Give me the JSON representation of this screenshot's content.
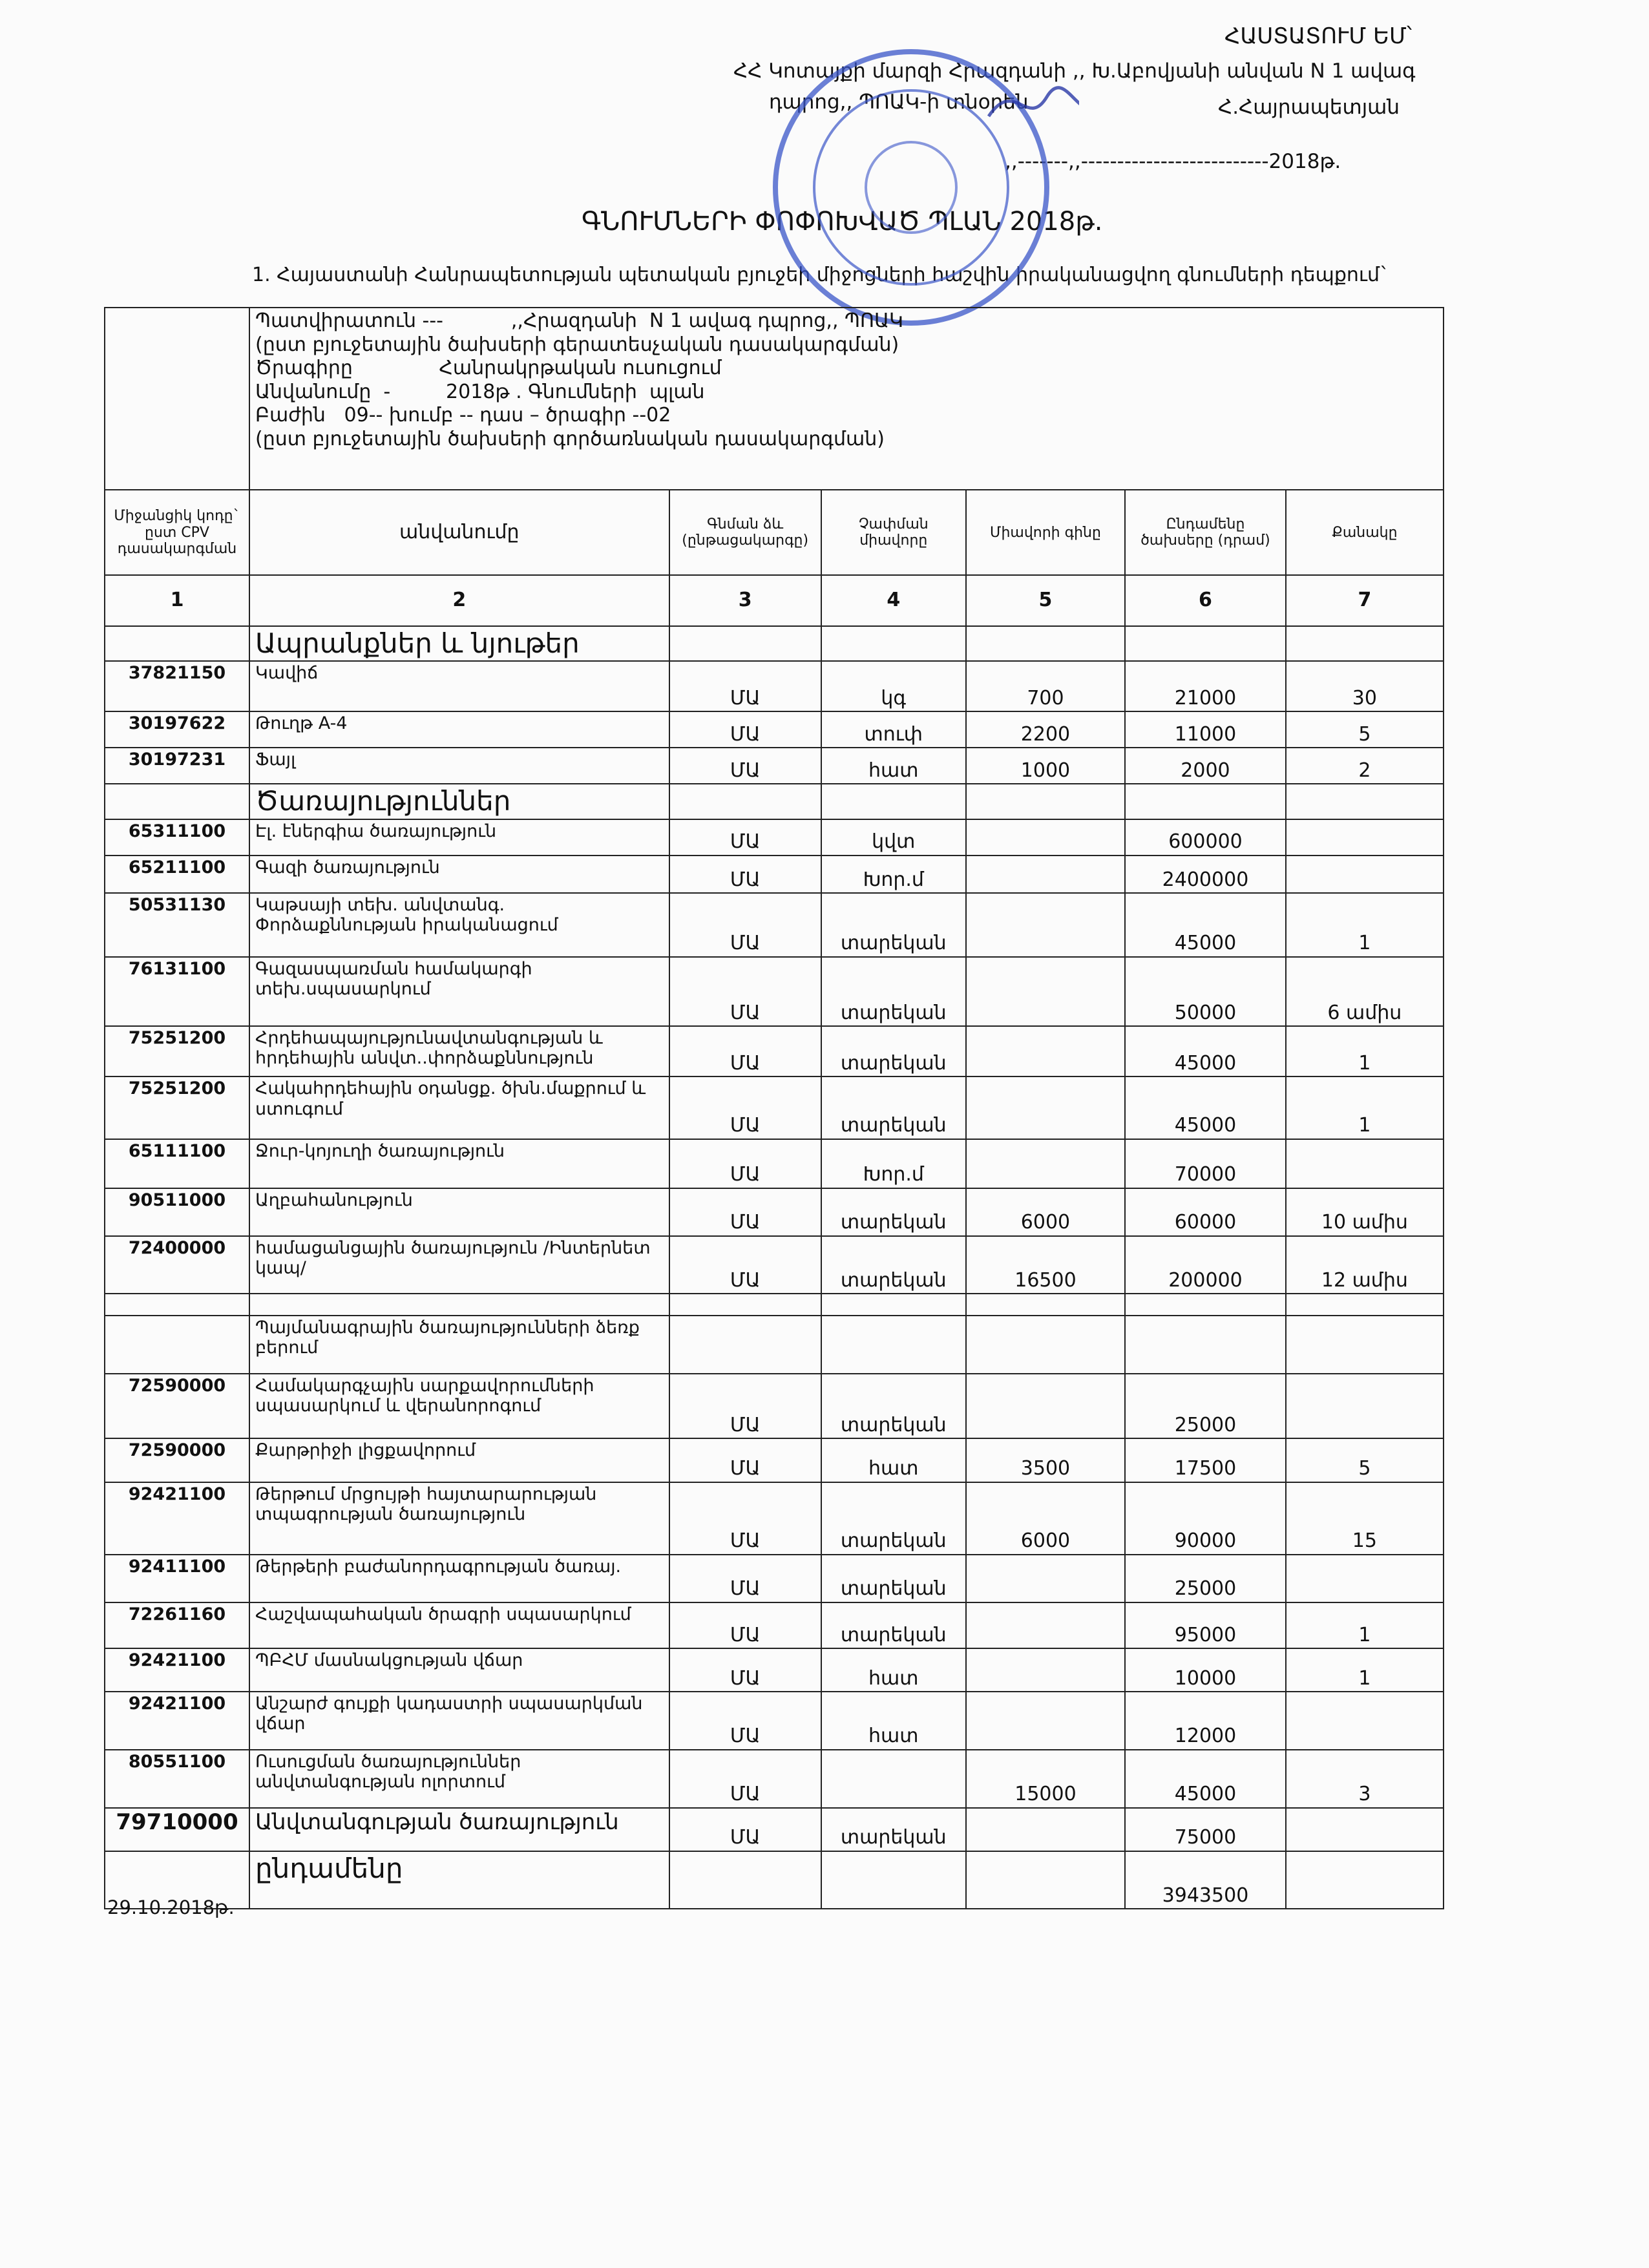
{
  "header": {
    "approve": "ՀԱՍՏԱՏՈՒՄ ԵՄ՝",
    "org_line1": "ՀՀ Կոտայքի մարզի Հրազդանի ,, Խ.Աբովյանի անվան N 1 ավագ",
    "org_line2": "դպրոց,, ՊՈԱԿ-ի տնօրեն",
    "director": "Հ.Հայրապետյան",
    "date_line": ",,-------,,--------------------------2018թ.",
    "title": "ԳՆՈՒՄՆԵՐԻ ՓՈՓՈԽՎԱԾ ՊԼԱՆ 2018թ.",
    "subtitle": "1. Հայաստանի Հանրապետության պետական բյուջեի միջոցների հաշվին իրականացվող գնումների դեպքում`"
  },
  "table": {
    "info": [
      "Պատվիրատուն ---           ,,Հրազդանի  N 1 ավագ դպրոց,, ՊՈԱԿ",
      "(ըստ բյուջետային ծախսերի գերատեսչական դասակարգման)",
      "Ծրագիրը              Հանրակրթական ուսուցում",
      "Անվանումը  -         2018թ . Գնումների  պլան",
      "Բաժին   09-- խումբ -- դաս – ծրագիր --02",
      "(ըստ բյուջետային ծախսերի գործառնական դասակարգման)"
    ],
    "columns": [
      "Միջանցիկ կոդը` ըստ CPV դասակարգման",
      "անվանումը",
      "Գնման ձև (ընթացակարգը)",
      "Չափման միավորը",
      "Միավորի գինը",
      "Ընդամենը ծախսերը (դրամ)",
      "Քանակը"
    ],
    "column_numbers": [
      1,
      2,
      3,
      4,
      5,
      6,
      7
    ],
    "rows": [
      [
        null,
        "Ապրանքներ և նյութեր",
        null,
        null,
        null,
        null,
        null
      ],
      [
        37821150,
        "Կավիճ",
        "ՄԱ",
        "կգ",
        700,
        21000,
        30
      ],
      [
        30197622,
        "Թուղթ A-4",
        "ՄԱ",
        "տուփ",
        2200,
        11000,
        5
      ],
      [
        30197231,
        "Ֆայլ",
        "ՄԱ",
        "հատ",
        1000,
        2000,
        2
      ],
      [
        null,
        "Ծառայություններ",
        null,
        null,
        null,
        null,
        null
      ],
      [
        65311100,
        "Էլ. էներգիա ծառայություն",
        "ՄԱ",
        "կվտ",
        null,
        600000,
        null
      ],
      [
        65211100,
        "Գազի ծառայություն",
        "ՄԱ",
        "Խոր.մ",
        null,
        2400000,
        null
      ],
      [
        50531130,
        "Կաթսայի տեխ. անվտանգ. Փորձաքննության իրականացում",
        "ՄԱ",
        "տարեկան",
        null,
        45000,
        1
      ],
      [
        76131100,
        "Գազասպառման համակարգի տեխ.սպասարկում",
        "ՄԱ",
        "տարեկան",
        null,
        50000,
        "6 ամիս"
      ],
      [
        75251200,
        "Հրդեհապայությունավտանգության և հրդեհային  անվտ..փորձաքննություն",
        "ՄԱ",
        "տարեկան",
        null,
        45000,
        1
      ],
      [
        75251200,
        "Հակահրդեհային օդանցք. ծխն.մաքրում և ստուգում",
        "ՄԱ",
        "տարեկան",
        null,
        45000,
        1
      ],
      [
        65111100,
        "Ջուր-կոյուղի ծառայություն",
        "ՄԱ",
        "Խոր.մ",
        null,
        70000,
        null
      ],
      [
        90511000,
        "Աղբահանություն",
        "ՄԱ",
        "տարեկան",
        6000,
        60000,
        "10 ամիս"
      ],
      [
        72400000,
        "համացանցային ծառայություն  /Ինտերնետ կապ/",
        "ՄԱ",
        "տարեկան",
        16500,
        200000,
        "12 ամիս"
      ],
      [
        null,
        null,
        null,
        null,
        null,
        null,
        null
      ],
      [
        null,
        "Պայմանագրային ծառայությունների ձեռք բերում",
        null,
        null,
        null,
        null,
        null
      ],
      [
        72590000,
        "Համակարգչային սարքավորումների սպասարկում  և վերանորոգում",
        "ՄԱ",
        "տարեկան",
        null,
        25000,
        null
      ],
      [
        72590000,
        "Քարթրիջի լիցքավորում",
        "ՄԱ",
        "հատ",
        3500,
        17500,
        5
      ],
      [
        92421100,
        "Թերթում մրցույթի հայտարարության տպագրության ծառայություն",
        "ՄԱ",
        "տարեկան",
        6000,
        90000,
        15
      ],
      [
        92411100,
        "Թերթերի բաժանորդագրության ծառայ.",
        "ՄԱ",
        "տարեկան",
        null,
        25000,
        null
      ],
      [
        72261160,
        "Հաշվապահական ծրագրի սպասարկում",
        "ՄԱ",
        "տարեկան",
        null,
        95000,
        1
      ],
      [
        92421100,
        "ՊԲՀՄ մասնակցության վճար",
        "ՄԱ",
        "հատ",
        null,
        10000,
        1
      ],
      [
        92421100,
        "Անշարժ գույքի կադաստրի սպասարկման վճար",
        "ՄԱ",
        "հատ",
        null,
        12000,
        null
      ],
      [
        80551100,
        "Ուսուցման ծառայություններ անվտանգության ոլորտում",
        "ՄԱ",
        null,
        15000,
        45000,
        3
      ],
      [
        79710000,
        "Անվտանգության  ծառայություն",
        "ՄԱ",
        "տարեկան",
        null,
        75000,
        null
      ],
      [
        null,
        "ընդամենը",
        null,
        null,
        null,
        3943500,
        null
      ]
    ]
  },
  "footer": {
    "date": "29.10.2018թ."
  }
}
